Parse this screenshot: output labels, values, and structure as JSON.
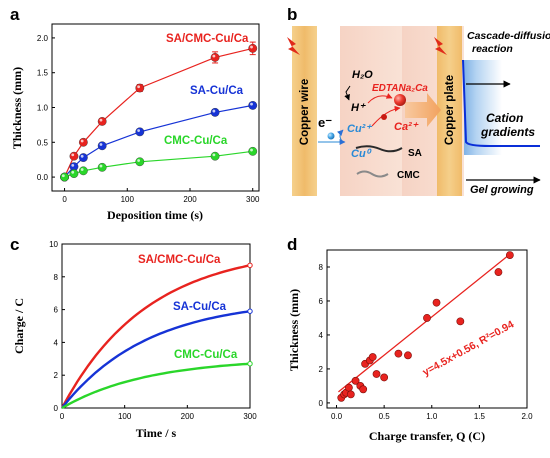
{
  "panels": {
    "a": "a",
    "b": "b",
    "c": "c",
    "d": "d"
  },
  "colors": {
    "red": "#e8231f",
    "blue": "#1633d6",
    "green": "#2ad62a"
  },
  "chart_data": [
    {
      "type": "line",
      "panel": "a",
      "xlabel": "Deposition time (s)",
      "ylabel": "Thickness (mm)",
      "xlim": [
        -20,
        310
      ],
      "ylim": [
        -0.2,
        2.2
      ],
      "xticks": [
        0,
        100,
        200,
        300
      ],
      "yticks": [
        0.0,
        0.5,
        1.0,
        1.5,
        2.0
      ],
      "ytick_labels": [
        "0.0",
        "0.5",
        "1.0",
        "1.5",
        "2.0"
      ],
      "series": [
        {
          "name": "SA/CMC-Cu/Ca",
          "color": "#e8231f",
          "x": [
            0,
            15,
            30,
            60,
            120,
            240,
            300
          ],
          "y": [
            0.0,
            0.3,
            0.5,
            0.8,
            1.28,
            1.72,
            1.85
          ],
          "err": [
            0.02,
            0.03,
            0.04,
            0.04,
            0.05,
            0.08,
            0.09
          ]
        },
        {
          "name": "SA-Cu/Ca",
          "color": "#1633d6",
          "x": [
            0,
            15,
            30,
            60,
            120,
            240,
            300
          ],
          "y": [
            0.0,
            0.15,
            0.28,
            0.45,
            0.65,
            0.93,
            1.03
          ],
          "err": [
            0.02,
            0.02,
            0.03,
            0.03,
            0.04,
            0.04,
            0.04
          ]
        },
        {
          "name": "CMC-Cu/Ca",
          "color": "#2ad62a",
          "x": [
            0,
            15,
            30,
            60,
            120,
            240,
            300
          ],
          "y": [
            0.0,
            0.05,
            0.09,
            0.14,
            0.22,
            0.3,
            0.37
          ],
          "err": [
            0.02,
            0.02,
            0.02,
            0.02,
            0.02,
            0.02,
            0.02
          ]
        }
      ]
    },
    {
      "type": "line",
      "panel": "c",
      "xlabel": "Time / s",
      "ylabel": "Charge / C",
      "xlim": [
        0,
        300
      ],
      "ylim": [
        0,
        10
      ],
      "xticks": [
        0,
        100,
        200,
        300
      ],
      "yticks": [
        0,
        2,
        4,
        6,
        8,
        10
      ],
      "series": [
        {
          "name": "SA/CMC-Cu/Ca",
          "color": "#e8231f",
          "final": 8.7
        },
        {
          "name": "SA-Cu/Ca",
          "color": "#1633d6",
          "final": 5.9
        },
        {
          "name": "CMC-Cu/Ca",
          "color": "#2ad62a",
          "final": 2.7
        }
      ]
    },
    {
      "type": "scatter",
      "panel": "d",
      "xlabel": "Charge transfer, Q (C)",
      "ylabel": "Thickness (mm)",
      "xlim": [
        -0.1,
        2.0
      ],
      "ylim": [
        -0.3,
        9.0
      ],
      "xticks": [
        0.0,
        0.5,
        1.0,
        1.5,
        2.0
      ],
      "xtick_labels": [
        "0.0",
        "0.5",
        "1.0",
        "1.5",
        "2.0"
      ],
      "yticks": [
        0,
        2,
        4,
        6,
        8
      ],
      "fit_label": "y=4.5x+0.56,  R²=0.94",
      "fit": {
        "slope": 4.5,
        "intercept": 0.56,
        "x_range": [
          0.02,
          1.83
        ]
      },
      "color": "#e8231f",
      "points": [
        [
          0.05,
          0.3
        ],
        [
          0.08,
          0.5
        ],
        [
          0.1,
          0.6
        ],
        [
          0.13,
          0.9
        ],
        [
          0.15,
          0.5
        ],
        [
          0.2,
          1.3
        ],
        [
          0.25,
          1.0
        ],
        [
          0.28,
          0.8
        ],
        [
          0.3,
          2.3
        ],
        [
          0.35,
          2.5
        ],
        [
          0.38,
          2.7
        ],
        [
          0.42,
          1.7
        ],
        [
          0.5,
          1.5
        ],
        [
          0.65,
          2.9
        ],
        [
          0.75,
          2.8
        ],
        [
          0.95,
          5.0
        ],
        [
          1.05,
          5.9
        ],
        [
          1.3,
          4.8
        ],
        [
          1.7,
          7.7
        ],
        [
          1.82,
          8.7
        ]
      ]
    }
  ],
  "diagram": {
    "copper_wire": "Copper wire",
    "copper_plate": "Copper plate",
    "h2o": "H₂O",
    "h_plus": "H⁺",
    "e_minus": "e⁻",
    "cu2plus": "Cu²⁺",
    "cu0": "Cu⁰",
    "edta": "EDTANa₂Ca",
    "ca2plus": "Ca²⁺",
    "sa": "SA",
    "cmc": "CMC",
    "cascade_line1": "Cascade-diffusion",
    "cascade_line2": "reaction",
    "cation_line1": "Cation",
    "cation_line2": "gradients",
    "gel_growing": "Gel growing"
  }
}
